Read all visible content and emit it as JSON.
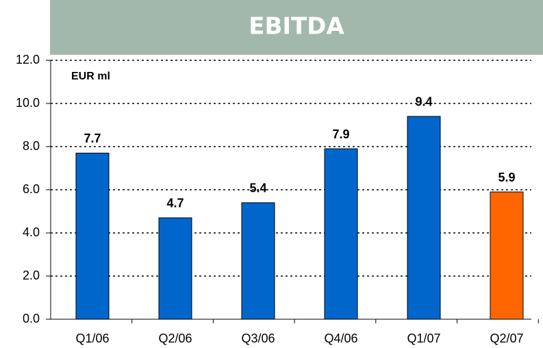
{
  "chart_data": {
    "type": "bar",
    "title": "EBITDA",
    "unit_label": "EUR ml",
    "categories": [
      "Q1/06",
      "Q2/06",
      "Q3/06",
      "Q4/06",
      "Q1/07",
      "Q2/07"
    ],
    "values": [
      7.7,
      4.7,
      5.4,
      7.9,
      9.4,
      5.9
    ],
    "colors": [
      "#0066cc",
      "#0066cc",
      "#0066cc",
      "#0066cc",
      "#0066cc",
      "#ff6600"
    ],
    "ylim": [
      0,
      12
    ],
    "yticks": [
      {
        "value": 0,
        "label": "0.0"
      },
      {
        "value": 2,
        "label": "2.0"
      },
      {
        "value": 4,
        "label": "4.0"
      },
      {
        "value": 6,
        "label": "6.0"
      },
      {
        "value": 8,
        "label": "8.0"
      },
      {
        "value": 10,
        "label": "10.0"
      },
      {
        "value": 12,
        "label": "12.0"
      }
    ],
    "grid": true
  }
}
